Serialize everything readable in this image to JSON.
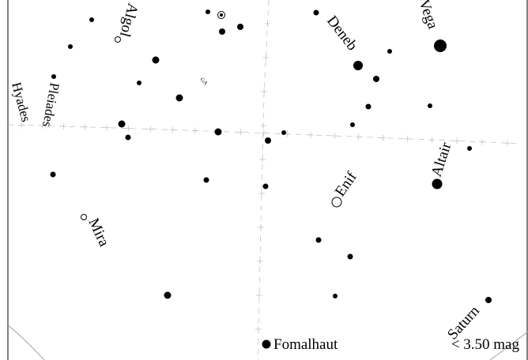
{
  "chart_map": {
    "labels": {
      "algol": "Algol",
      "deneb": "Deneb",
      "vega": "Vega",
      "pleiades": "Pleiades",
      "hyades": "Hyades",
      "ga": "GA",
      "enif": "Enif",
      "altair": "Altair",
      "mira": "Mira",
      "saturn": "Saturn",
      "fomalhaut": "Fomalhaut"
    },
    "limit_magnitude": "< 3.50 mag"
  },
  "colors": {
    "stars": "#000000",
    "guides": "#bdbdbd",
    "background": "#ffffff"
  }
}
